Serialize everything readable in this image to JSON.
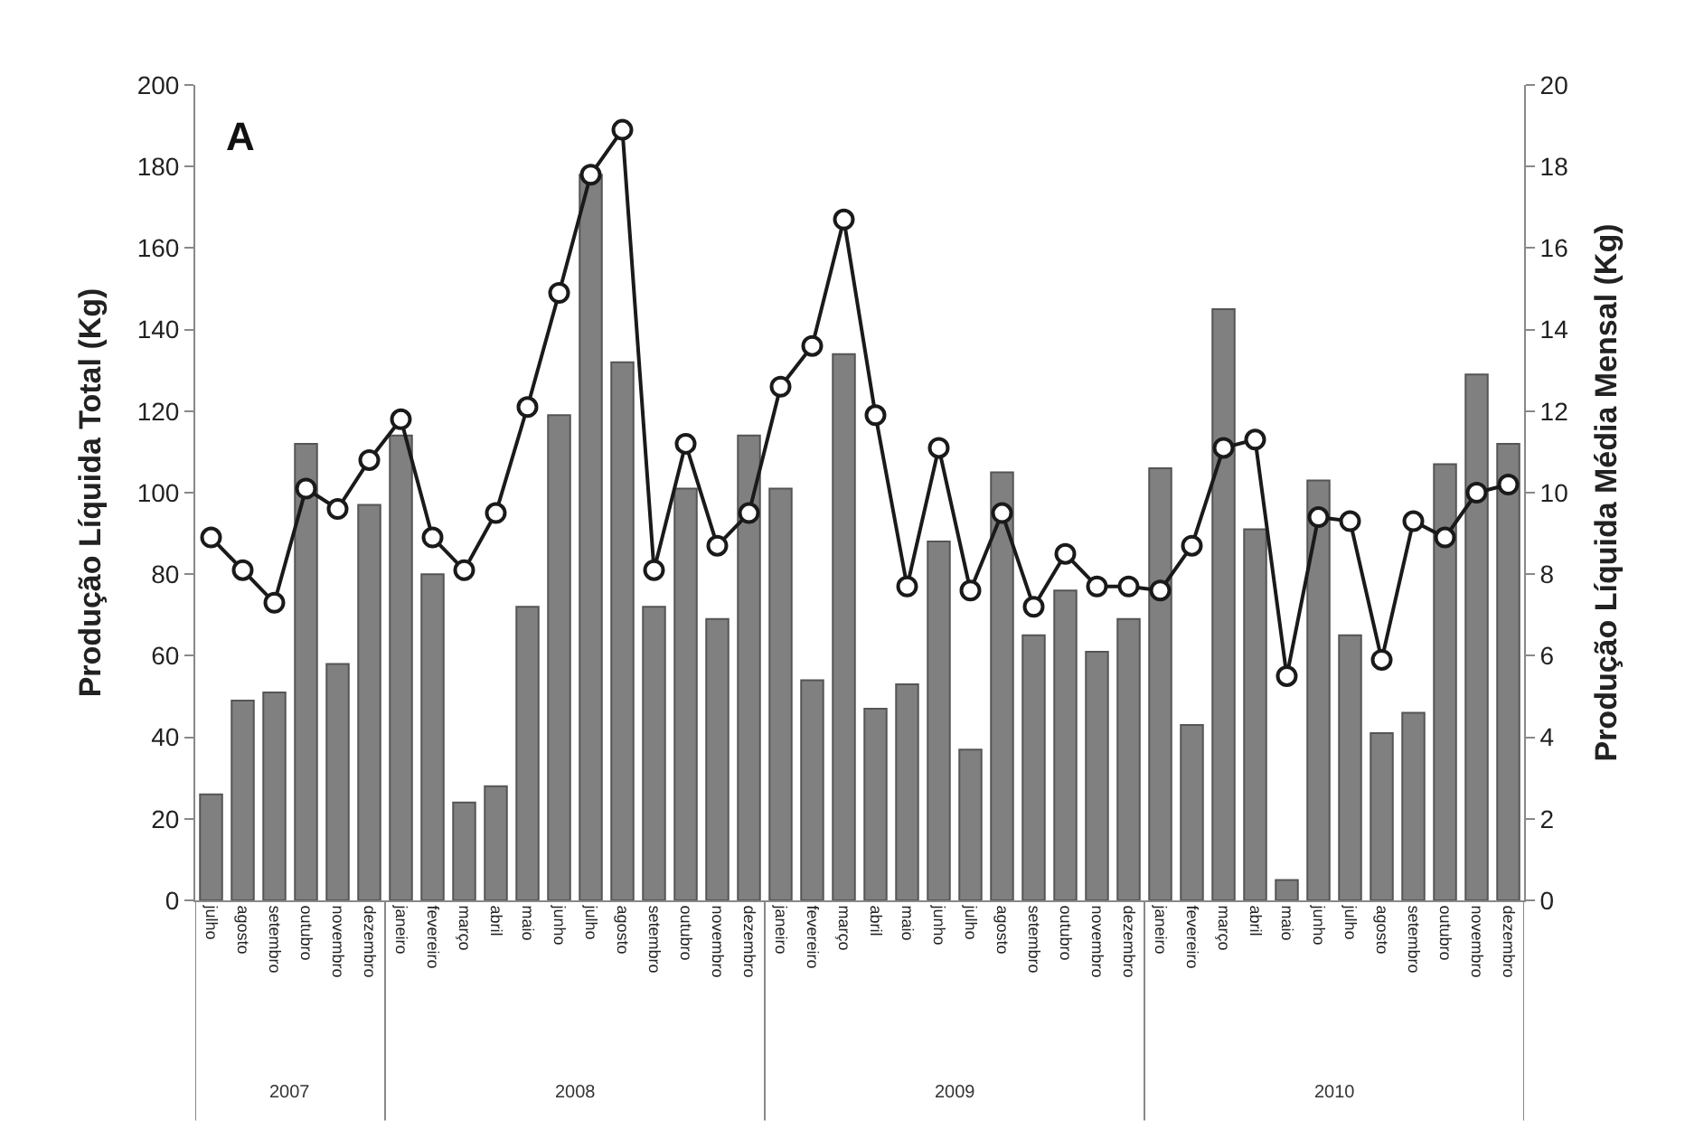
{
  "chart_data": {
    "type": "bar",
    "ylabel": "Produção Líquida Total (Kg)",
    "y2label": "Produção Líquida Média Mensal (Kg)",
    "annotations": [
      "A",
      "2007",
      "2008",
      "2009",
      "2010"
    ],
    "categories": [
      "julho",
      "agosto",
      "setembro",
      "outubro",
      "novembro",
      "dezembro",
      "janeiro",
      "fevereiro",
      "março",
      "abril",
      "maio",
      "junho",
      "julho",
      "agosto",
      "setembro",
      "outubro",
      "novembro",
      "dezembro",
      "janeiro",
      "fevereiro",
      "março",
      "abril",
      "maio",
      "junho",
      "julho",
      "agosto",
      "setembro",
      "outubro",
      "novembro",
      "dezembro",
      "janeiro",
      "fevereiro",
      "março",
      "abril",
      "maio",
      "junho",
      "julho",
      "agosto",
      "setembro",
      "outubro",
      "novembro",
      "dezembro"
    ],
    "series": [
      {
        "color": "#808080",
        "values": [
          26,
          49,
          51,
          112,
          58,
          97,
          114,
          80,
          24,
          28,
          72,
          119,
          178,
          132,
          72,
          101,
          69,
          114,
          101,
          54,
          134,
          47,
          53,
          88,
          37,
          105,
          65,
          76,
          61,
          69,
          106,
          43,
          145,
          91,
          5,
          103,
          65,
          41,
          46,
          107,
          129,
          112
        ]
      },
      {
        "type": "line",
        "axis": "y2",
        "color": "#1a1a1a",
        "marker": "circle",
        "line_style": "solid",
        "values": [
          8.9,
          8.1,
          7.3,
          10.1,
          9.6,
          10.8,
          11.8,
          8.9,
          8.1,
          9.5,
          12.1,
          14.9,
          17.8,
          18.9,
          8.1,
          11.2,
          8.7,
          9.5,
          12.6,
          13.6,
          16.7,
          11.9,
          7.7,
          11.1,
          7.6,
          9.5,
          7.2,
          8.5,
          7.7,
          7.7,
          7.6,
          8.7,
          11.1,
          11.3,
          5.5,
          9.4,
          9.3,
          5.9,
          9.3,
          8.9,
          10.0,
          10.2
        ]
      }
    ],
    "ylim": [
      0,
      200
    ],
    "yticks": [
      0,
      20,
      40,
      60,
      80,
      100,
      120,
      140,
      160,
      180,
      200
    ],
    "y2lim": [
      0,
      20
    ],
    "y2ticks": [
      0,
      2,
      4,
      6,
      8,
      10,
      12,
      14,
      16,
      18,
      20
    ]
  }
}
